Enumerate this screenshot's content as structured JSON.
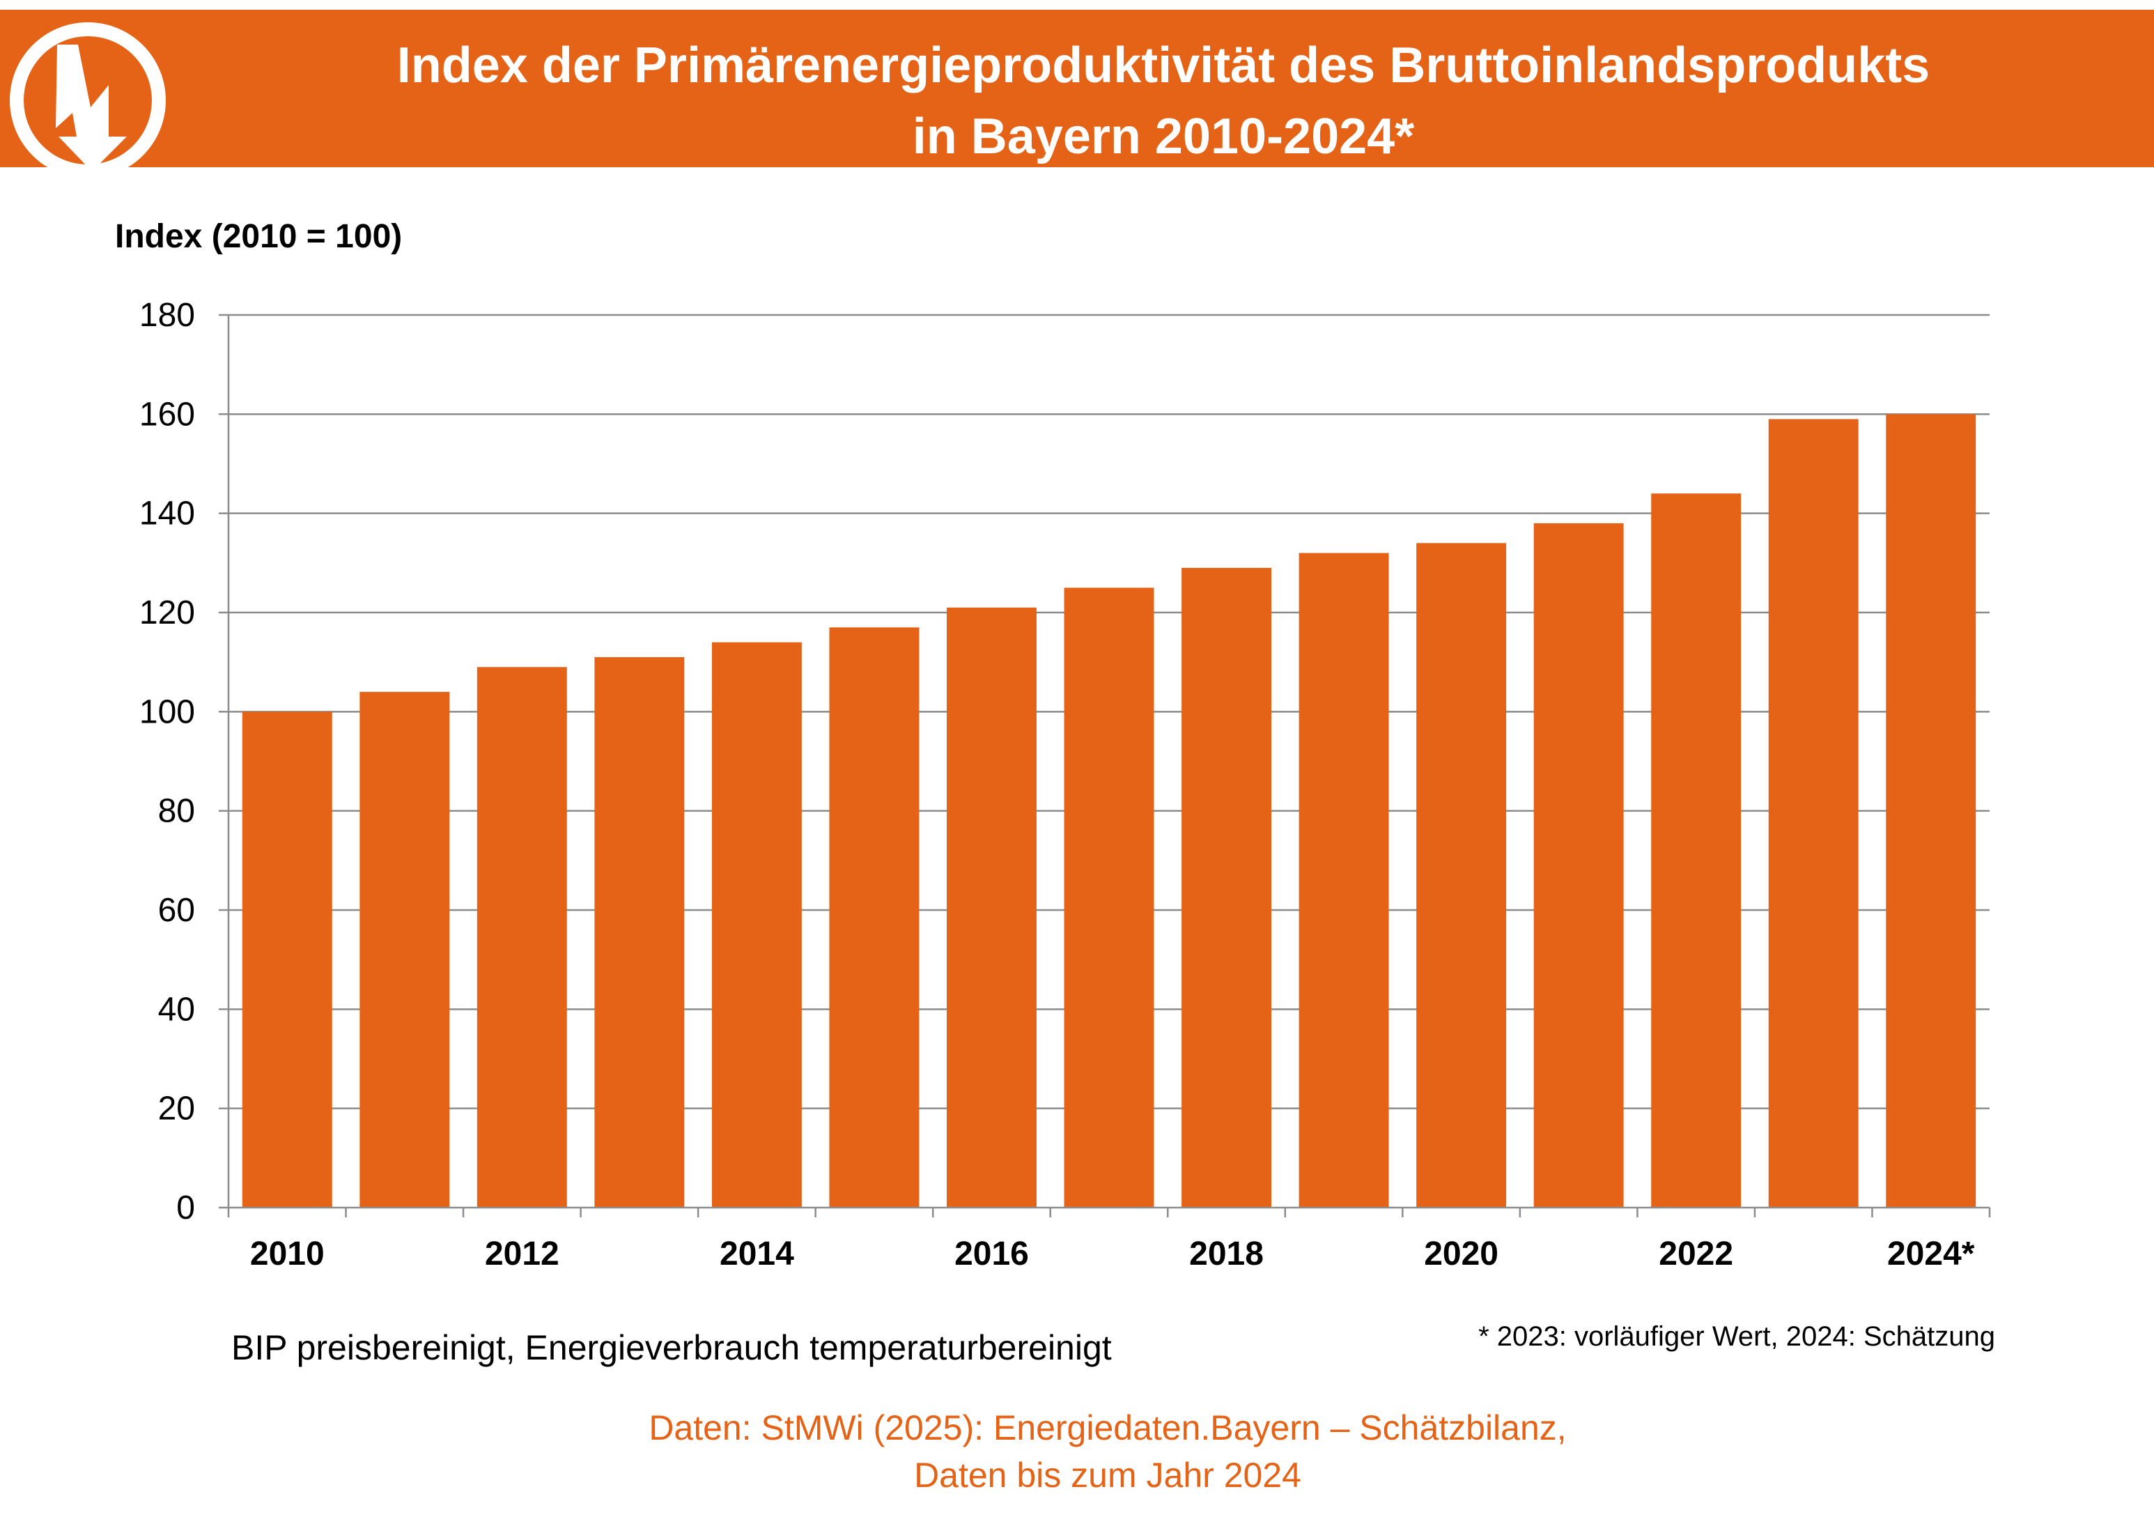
{
  "header": {
    "title_line1": "Index der Primärenergieproduktivität des Bruttoinlandsprodukts",
    "title_line2": "in Bayern 2010-2024*",
    "accent_color": "#e46316",
    "logo_icon": "lightning-bolt-icon"
  },
  "chart_data": {
    "type": "bar",
    "title": "Index der Primärenergieproduktivität des Bruttoinlandsprodukts in Bayern 2010-2024*",
    "categories": [
      "2010",
      "2011",
      "2012",
      "2013",
      "2014",
      "2015",
      "2016",
      "2017",
      "2018",
      "2019",
      "2020",
      "2021",
      "2022",
      "2023",
      "2024*"
    ],
    "tick_labels": [
      "2010",
      "",
      "2012",
      "",
      "2014",
      "",
      "2016",
      "",
      "2018",
      "",
      "2020",
      "",
      "2022",
      "",
      "2024*"
    ],
    "values": [
      100,
      104,
      109,
      111,
      114,
      117,
      121,
      125,
      129,
      132,
      134,
      138,
      144,
      159,
      160
    ],
    "ylabel": "Index (2010 = 100)",
    "xlabel": "",
    "ylim": [
      0,
      180
    ],
    "yticks": [
      0,
      20,
      40,
      60,
      80,
      100,
      120,
      140,
      160,
      180
    ],
    "grid": true,
    "bar_color": "#e46316"
  },
  "notes": {
    "left": "BIP preisbereinigt, Energieverbrauch temperaturbereinigt",
    "right": "* 2023: vorläufiger Wert, 2024: Schätzung"
  },
  "source": {
    "line1": "Daten: StMWi (2025): Energiedaten.Bayern – Schätzbilanz,",
    "line2": "Daten bis zum Jahr 2024"
  }
}
